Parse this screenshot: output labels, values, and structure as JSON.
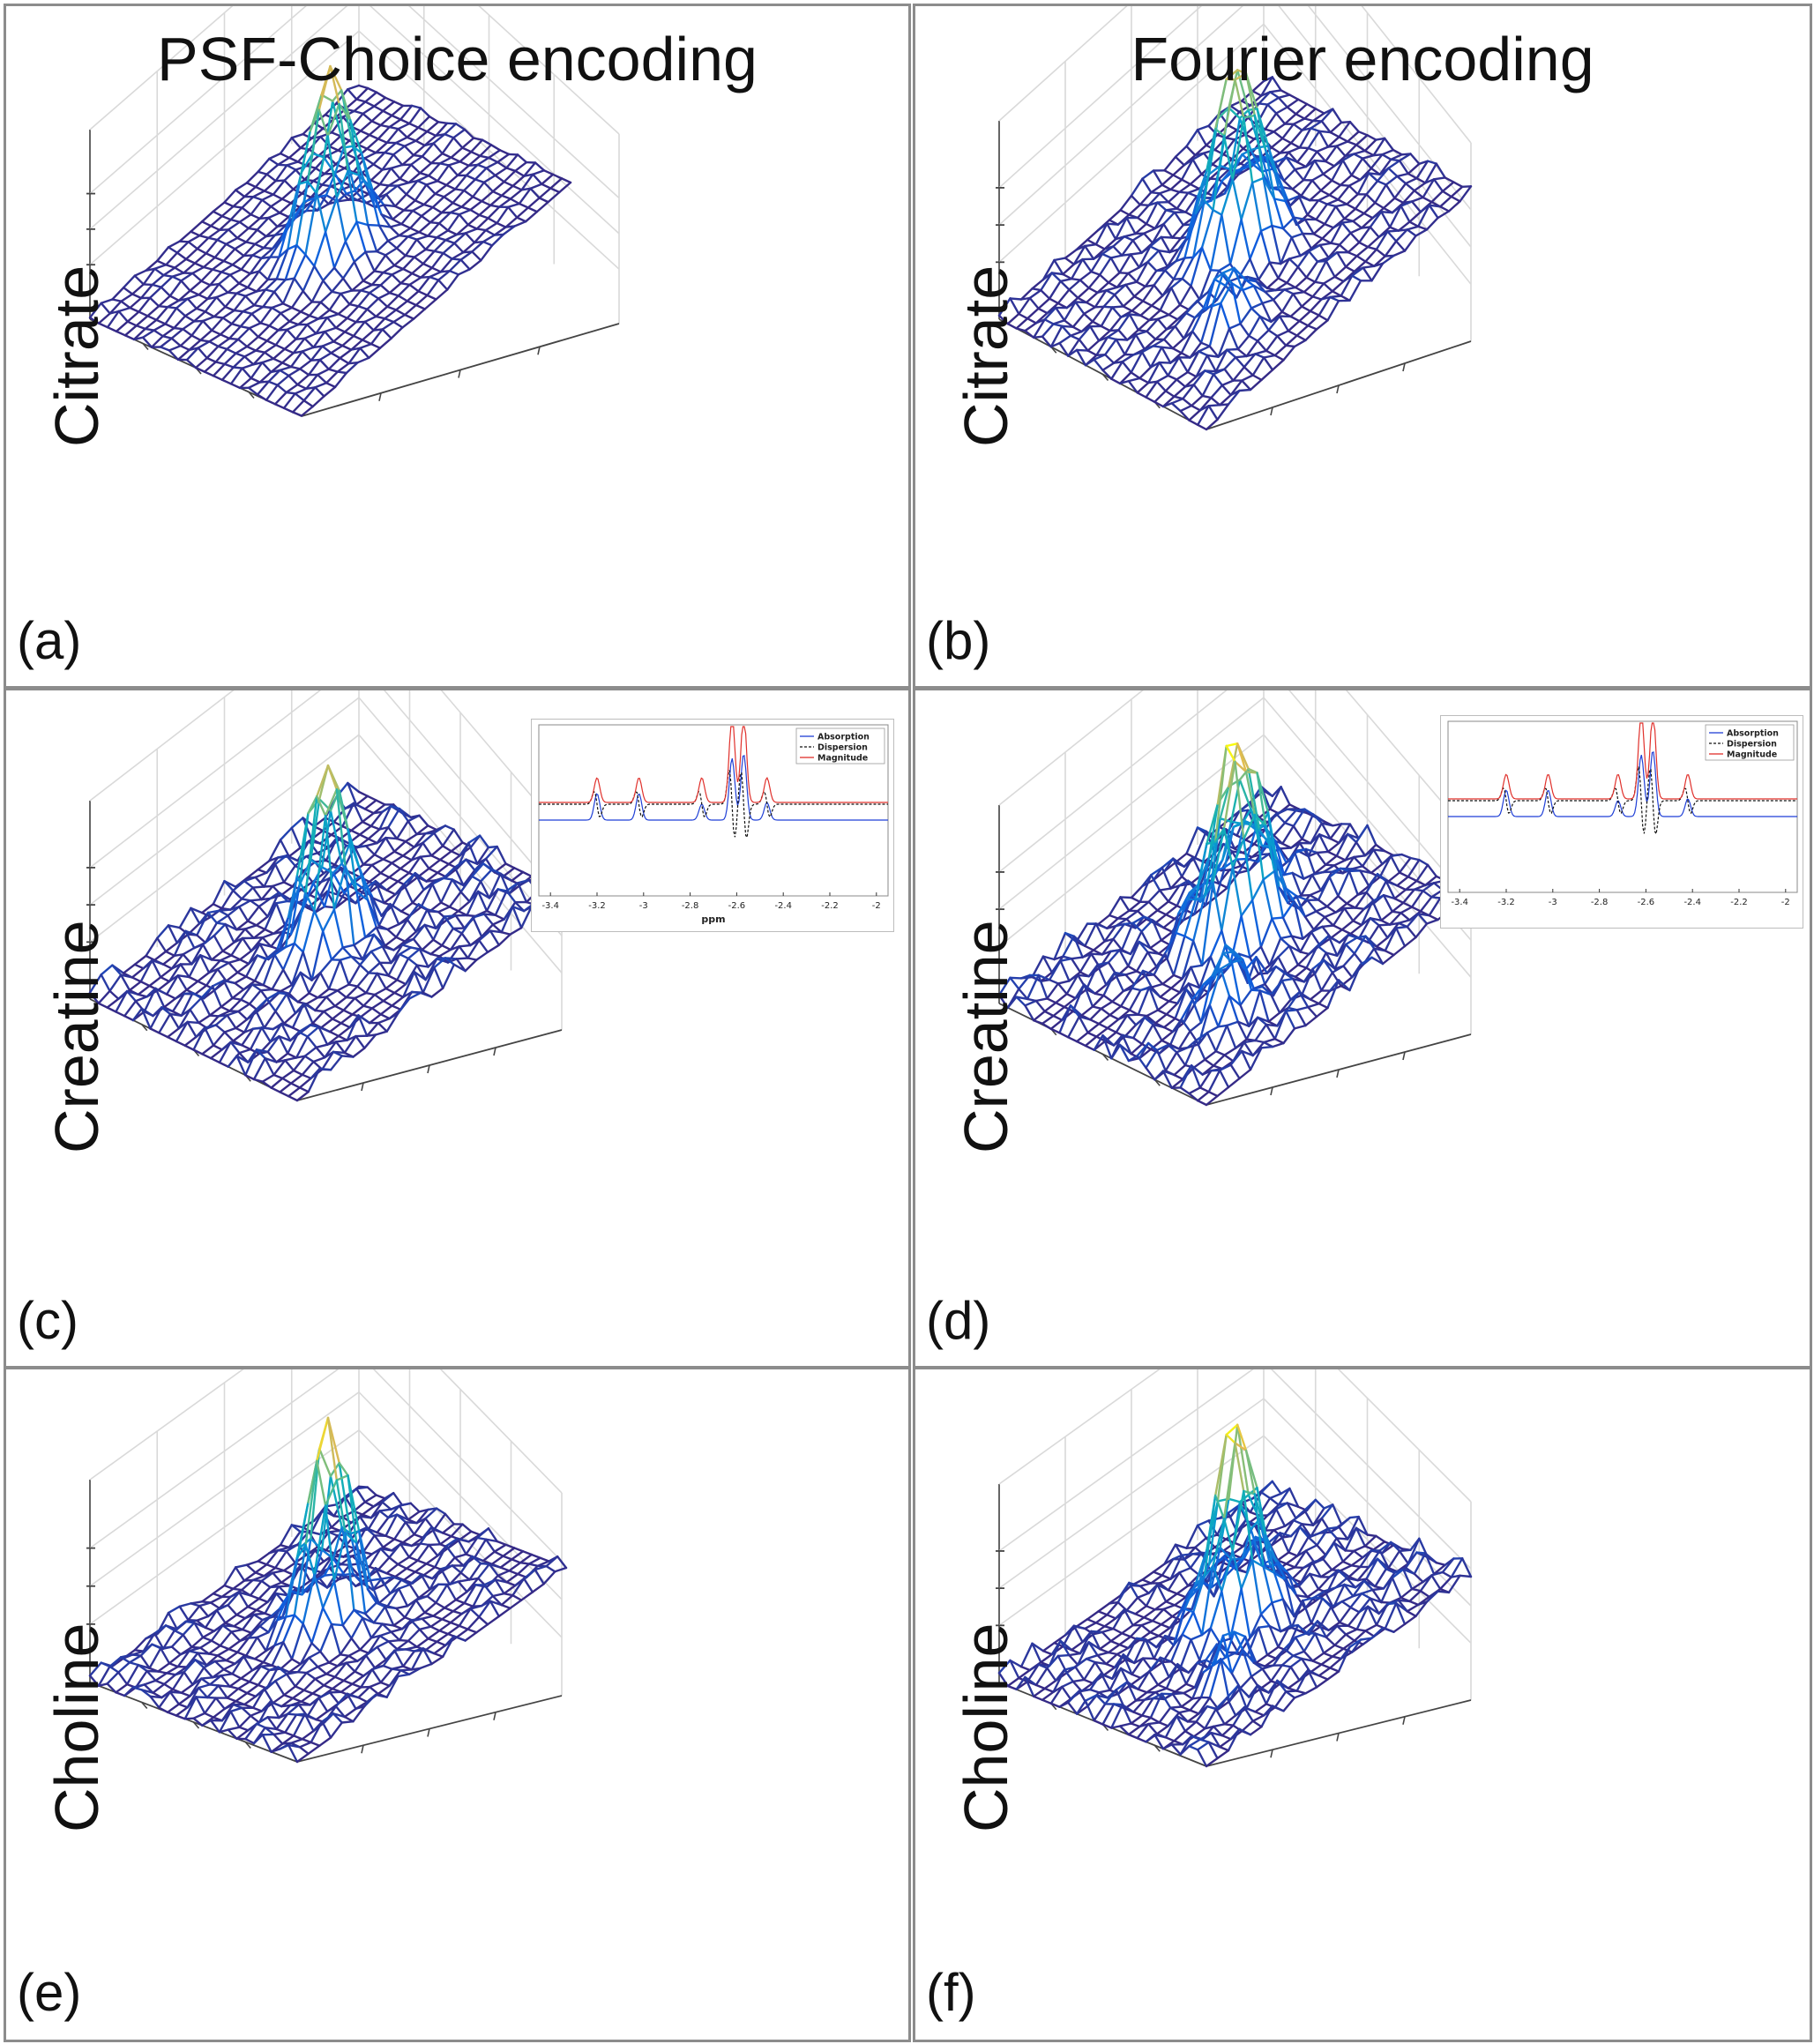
{
  "chart_data": [
    {
      "id": "a",
      "type": "surface",
      "panel_label": "(a)",
      "column_title": "PSF-Choice encoding",
      "metabolite": "Citrate",
      "encoding": "PSF-Choice",
      "peak_height": 1.0,
      "noise_level": 0.035,
      "side_lobes": [],
      "colormap": "parula"
    },
    {
      "id": "b",
      "type": "surface",
      "panel_label": "(b)",
      "column_title": "Fourier encoding",
      "metabolite": "Citrate",
      "encoding": "Fourier",
      "peak_height": 1.0,
      "noise_level": 0.06,
      "side_lobes": [
        {
          "rel_height": 0.25
        },
        {
          "rel_height": 0.18
        }
      ],
      "colormap": "parula"
    },
    {
      "id": "c",
      "type": "surface",
      "panel_label": "(c)",
      "metabolite": "Creatine",
      "encoding": "PSF-Choice",
      "peak_height": 1.0,
      "noise_level": 0.09,
      "side_lobes": [],
      "colormap": "parula",
      "inset": {
        "type": "line",
        "xlabel": "ppm",
        "xticks": [
          -3.4,
          -3.2,
          -3,
          -2.8,
          -2.6,
          -2.4,
          -2.2,
          -2
        ],
        "legend": [
          "Absorption",
          "Dispersion",
          "Magnitude"
        ],
        "series_colors": [
          "#1f3fd6",
          "#111111",
          "#e0302b"
        ],
        "peaks_ppm": [
          -3.2,
          -3.02,
          -2.75,
          -2.62,
          -2.57,
          -2.47
        ]
      }
    },
    {
      "id": "d",
      "type": "surface",
      "panel_label": "(d)",
      "metabolite": "Creatine",
      "encoding": "Fourier",
      "peak_height": 1.0,
      "noise_level": 0.1,
      "side_lobes": [
        {
          "rel_height": 0.35
        },
        {
          "rel_height": 0.3
        }
      ],
      "colormap": "parula",
      "inset": {
        "type": "line",
        "xlabel": "",
        "xticks": [
          -3.4,
          -3.2,
          -3,
          -2.8,
          -2.6,
          -2.4,
          -2.2,
          -2
        ],
        "legend": [
          "Absorption",
          "Dispersion",
          "Magnitude"
        ],
        "series_colors": [
          "#1f3fd6",
          "#111111",
          "#e0302b"
        ],
        "peaks_ppm": [
          -3.2,
          -3.02,
          -2.72,
          -2.62,
          -2.57,
          -2.42
        ]
      }
    },
    {
      "id": "e",
      "type": "surface",
      "panel_label": "(e)",
      "metabolite": "Choline",
      "encoding": "PSF-Choice",
      "peak_height": 1.0,
      "noise_level": 0.07,
      "side_lobes": [],
      "colormap": "parula"
    },
    {
      "id": "f",
      "type": "surface",
      "panel_label": "(f)",
      "metabolite": "Choline",
      "encoding": "Fourier",
      "peak_height": 1.0,
      "noise_level": 0.09,
      "side_lobes": [
        {
          "rel_height": 0.2
        },
        {
          "rel_height": 0.15
        }
      ],
      "colormap": "parula"
    }
  ]
}
